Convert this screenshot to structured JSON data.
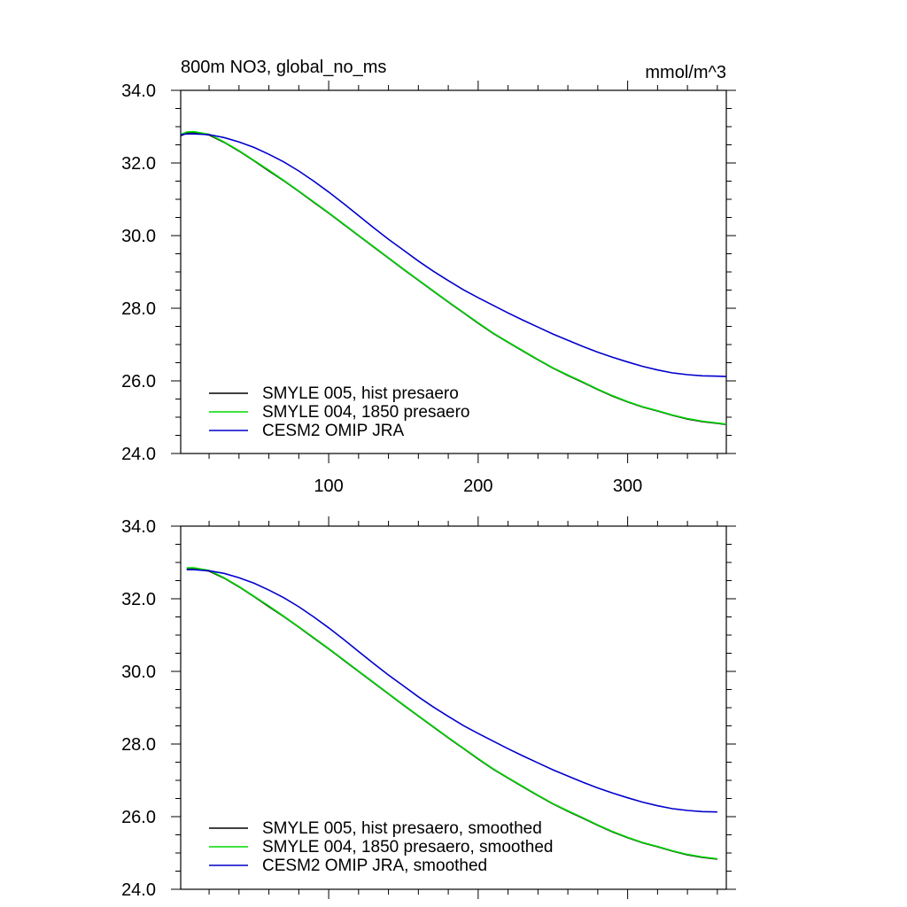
{
  "chart_data": [
    {
      "type": "line",
      "title": "800m NO3, global_no_ms",
      "units": "mmol/m^3",
      "xlim": [
        1,
        366
      ],
      "ylim": [
        24.0,
        34.0
      ],
      "x_tick_labels": [
        "100",
        "200",
        "300"
      ],
      "y_tick_labels": [
        "24.0",
        "26.0",
        "28.0",
        "30.0",
        "32.0",
        "34.0"
      ],
      "grid": false,
      "legend_position": "bottom-left",
      "x": [
        1,
        5,
        10,
        20,
        30,
        40,
        50,
        60,
        70,
        80,
        90,
        100,
        110,
        120,
        130,
        140,
        150,
        160,
        170,
        180,
        190,
        200,
        210,
        220,
        230,
        240,
        250,
        260,
        270,
        280,
        290,
        300,
        310,
        320,
        330,
        340,
        350,
        360,
        366
      ],
      "series": [
        {
          "name": "SMYLE 005, hist presaero",
          "color": "#000000",
          "values": [
            32.75,
            32.82,
            32.84,
            32.77,
            32.57,
            32.33,
            32.06,
            31.78,
            31.51,
            31.22,
            30.92,
            30.62,
            30.31,
            30.0,
            29.69,
            29.38,
            29.07,
            28.77,
            28.47,
            28.17,
            27.88,
            27.59,
            27.31,
            27.06,
            26.82,
            26.58,
            26.35,
            26.15,
            25.96,
            25.76,
            25.58,
            25.42,
            25.28,
            25.17,
            25.05,
            24.95,
            24.88,
            24.83,
            24.8
          ]
        },
        {
          "name": "SMYLE 004, 1850 presaero",
          "color": "#00d800",
          "values": [
            32.78,
            32.85,
            32.86,
            32.79,
            32.58,
            32.34,
            32.07,
            31.8,
            31.52,
            31.23,
            30.93,
            30.63,
            30.32,
            30.01,
            29.7,
            29.39,
            29.08,
            28.78,
            28.48,
            28.18,
            27.89,
            27.6,
            27.32,
            27.07,
            26.83,
            26.59,
            26.36,
            26.16,
            25.97,
            25.77,
            25.59,
            25.43,
            25.29,
            25.18,
            25.06,
            24.96,
            24.89,
            24.84,
            24.81
          ]
        },
        {
          "name": "CESM2 OMIP JRA",
          "color": "#0000cc",
          "values": [
            32.78,
            32.8,
            32.8,
            32.78,
            32.7,
            32.58,
            32.43,
            32.24,
            32.03,
            31.78,
            31.5,
            31.2,
            30.88,
            30.55,
            30.22,
            29.9,
            29.6,
            29.3,
            29.02,
            28.76,
            28.51,
            28.29,
            28.08,
            27.87,
            27.67,
            27.48,
            27.29,
            27.12,
            26.95,
            26.79,
            26.65,
            26.52,
            26.4,
            26.3,
            26.22,
            26.17,
            26.14,
            26.13,
            26.12
          ]
        }
      ]
    },
    {
      "type": "line",
      "xlim": [
        1,
        366
      ],
      "ylim": [
        24.0,
        34.0
      ],
      "x_tick_labels": [],
      "y_tick_labels": [
        "24.0",
        "26.0",
        "28.0",
        "30.0",
        "32.0",
        "34.0"
      ],
      "grid": false,
      "legend_position": "bottom-left",
      "x": [
        5,
        10,
        20,
        30,
        40,
        50,
        60,
        70,
        80,
        90,
        100,
        110,
        120,
        130,
        140,
        150,
        160,
        170,
        180,
        190,
        200,
        210,
        220,
        230,
        240,
        250,
        260,
        270,
        280,
        290,
        300,
        310,
        320,
        330,
        340,
        350,
        360
      ],
      "series": [
        {
          "name": "SMYLE 005, hist presaero, smoothed",
          "color": "#000000",
          "values": [
            32.82,
            32.83,
            32.76,
            32.57,
            32.33,
            32.06,
            31.78,
            31.51,
            31.22,
            30.92,
            30.62,
            30.31,
            30.0,
            29.69,
            29.38,
            29.07,
            28.77,
            28.47,
            28.17,
            27.88,
            27.59,
            27.31,
            27.06,
            26.82,
            26.58,
            26.35,
            26.15,
            25.96,
            25.76,
            25.58,
            25.42,
            25.28,
            25.17,
            25.05,
            24.95,
            24.88,
            24.83
          ]
        },
        {
          "name": "SMYLE 004, 1850 presaero, smoothed",
          "color": "#00d800",
          "values": [
            32.85,
            32.85,
            32.78,
            32.58,
            32.34,
            32.07,
            31.8,
            31.52,
            31.23,
            30.93,
            30.63,
            30.32,
            30.01,
            29.7,
            29.39,
            29.08,
            28.78,
            28.48,
            28.18,
            27.89,
            27.6,
            27.32,
            27.07,
            26.83,
            26.59,
            26.36,
            26.16,
            25.97,
            25.77,
            25.59,
            25.43,
            25.29,
            25.18,
            25.06,
            24.96,
            24.89,
            24.84
          ]
        },
        {
          "name": "CESM2 OMIP JRA, smoothed",
          "color": "#0000cc",
          "values": [
            32.8,
            32.8,
            32.77,
            32.7,
            32.58,
            32.43,
            32.24,
            32.03,
            31.78,
            31.5,
            31.2,
            30.88,
            30.55,
            30.22,
            29.9,
            29.6,
            29.3,
            29.02,
            28.76,
            28.51,
            28.29,
            28.08,
            27.87,
            27.67,
            27.48,
            27.29,
            27.12,
            26.95,
            26.79,
            26.65,
            26.52,
            26.4,
            26.3,
            26.22,
            26.17,
            26.14,
            26.13
          ]
        }
      ]
    }
  ]
}
